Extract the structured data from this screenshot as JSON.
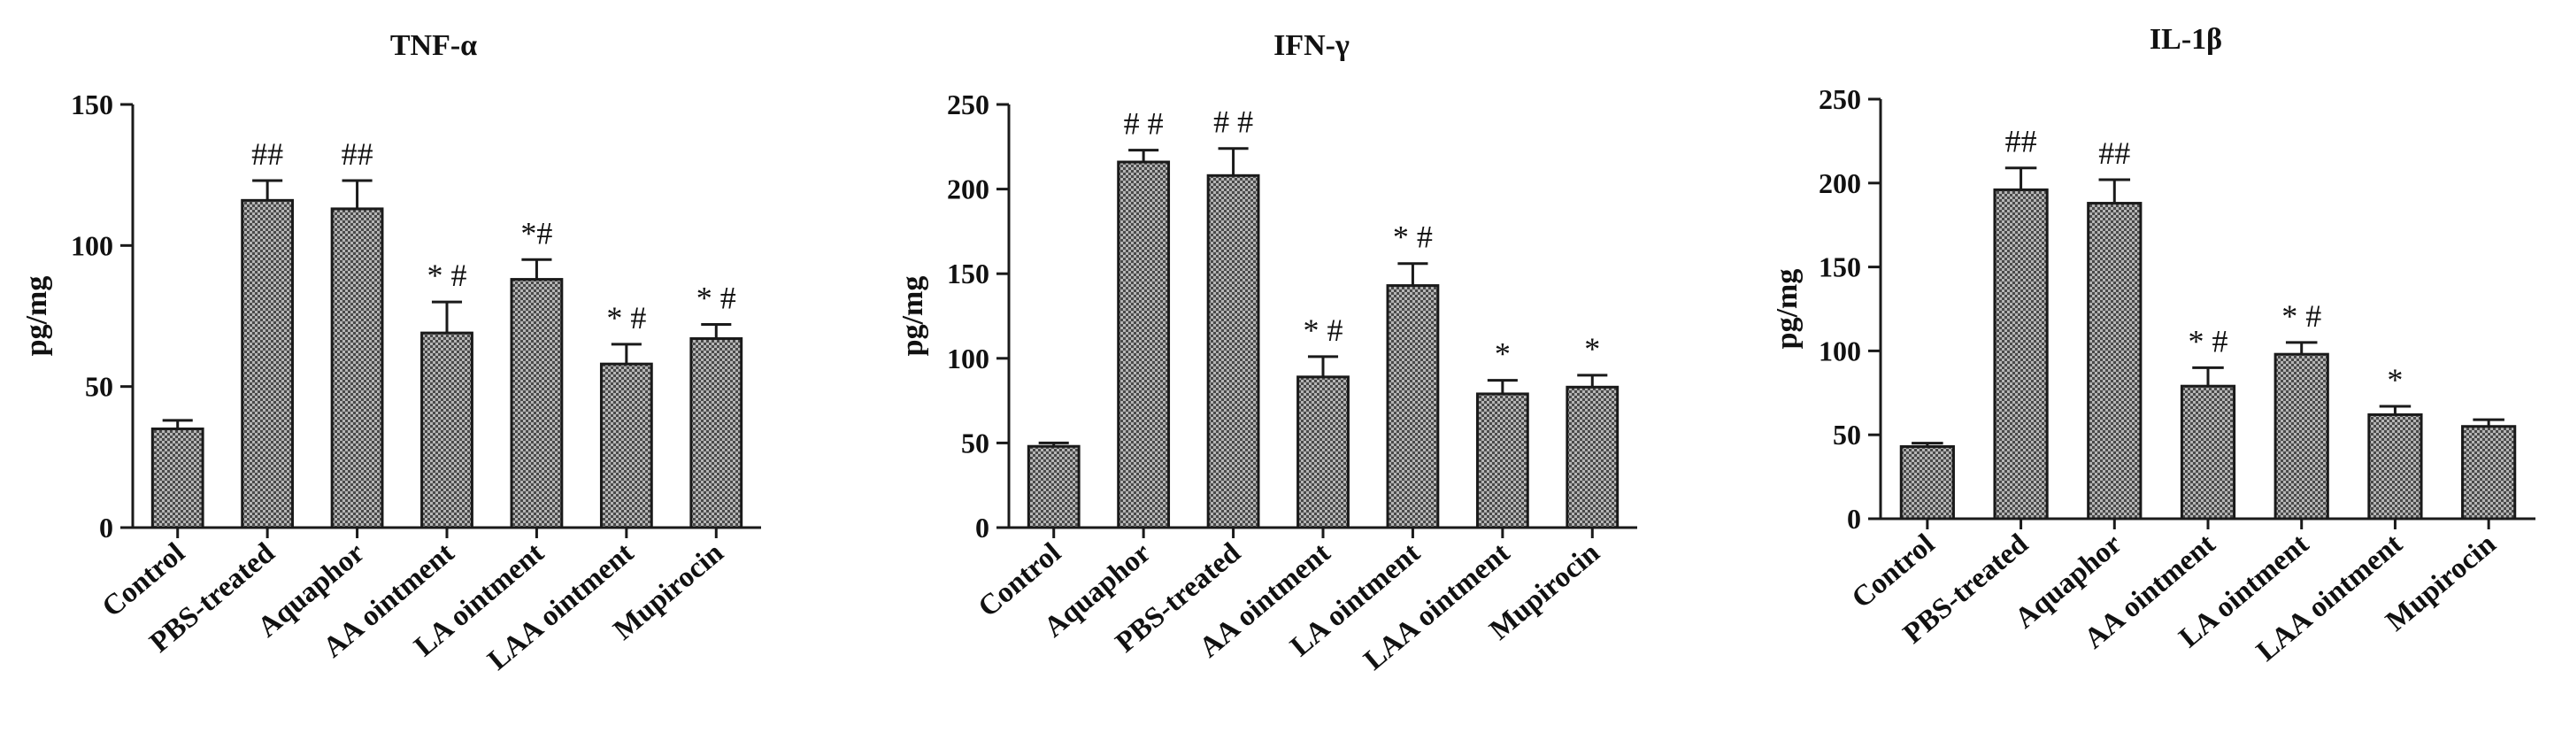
{
  "chart_data": [
    {
      "type": "bar",
      "title": "TNF-α",
      "xlabel": "",
      "ylabel": "pg/mg",
      "ylim": [
        0,
        150
      ],
      "yticks": [
        0,
        50,
        100,
        150
      ],
      "categories": [
        "Control",
        "PBS-treated",
        "Aquaphor",
        "AA ointment",
        "LA ointment",
        "LAA ointment",
        "Mupirocin"
      ],
      "values": [
        35,
        116,
        113,
        69,
        88,
        58,
        67
      ],
      "errors": [
        3,
        7,
        10,
        11,
        7,
        7,
        5
      ],
      "annotations": [
        "",
        "##",
        "##",
        "* #",
        "*#",
        "* #",
        "* #"
      ]
    },
    {
      "type": "bar",
      "title": "IFN-γ",
      "xlabel": "",
      "ylabel": "pg/mg",
      "ylim": [
        0,
        250
      ],
      "yticks": [
        0,
        50,
        100,
        150,
        200,
        250
      ],
      "categories": [
        "Control",
        "Aquaphor",
        "PBS-treated",
        "AA ointment",
        "LA ointment",
        "LAA ointment",
        "Mupirocin"
      ],
      "values": [
        48,
        216,
        208,
        89,
        143,
        79,
        83
      ],
      "errors": [
        2,
        7,
        16,
        12,
        13,
        8,
        7
      ],
      "annotations": [
        "",
        "# #",
        "# #",
        "* #",
        "* #",
        "*",
        "*"
      ]
    },
    {
      "type": "bar",
      "title": "IL-1β",
      "xlabel": "",
      "ylabel": "pg/mg",
      "ylim": [
        0,
        250
      ],
      "yticks": [
        0,
        50,
        100,
        150,
        200,
        250
      ],
      "categories": [
        "Control",
        "PBS-treated",
        "Aquaphor",
        "AA ointment",
        "LA ointment",
        "LAA ointment",
        "Mupirocin"
      ],
      "values": [
        43,
        196,
        188,
        79,
        98,
        62,
        55
      ],
      "errors": [
        2,
        13,
        14,
        11,
        7,
        5,
        4
      ],
      "annotations": [
        "",
        "##",
        "##",
        "* #",
        "* #",
        "*",
        ""
      ]
    }
  ],
  "colors": {
    "bar_fill": "#9a9a9a",
    "bar_stroke": "#1a1a1a",
    "axis": "#1a1a1a"
  }
}
